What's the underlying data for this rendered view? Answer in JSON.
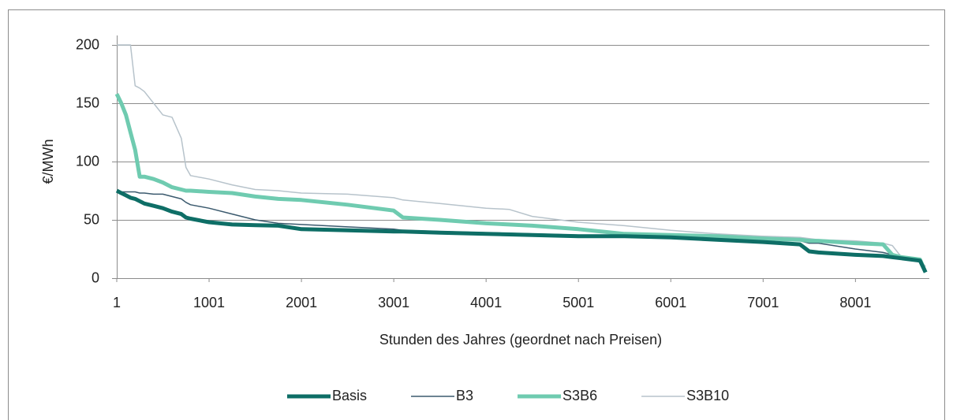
{
  "chart_data": {
    "type": "line",
    "x_label": "Stunden des Jahres (geordnet nach Preisen)",
    "y_label": "€/MWh",
    "x": [
      1,
      50,
      100,
      150,
      200,
      250,
      300,
      400,
      500,
      600,
      700,
      750,
      800,
      1000,
      1250,
      1500,
      1750,
      2000,
      2500,
      3000,
      3100,
      3500,
      4000,
      4250,
      4500,
      5000,
      5500,
      6000,
      6500,
      7000,
      7400,
      7500,
      7600,
      8000,
      8300,
      8400,
      8500,
      8700,
      8760
    ],
    "series": [
      {
        "name": "Basis",
        "color": "#0e6e66",
        "values": [
          75,
          73,
          71,
          69,
          68,
          66,
          64,
          62,
          60,
          57,
          55,
          52,
          51,
          48,
          46,
          45.5,
          45,
          42,
          41,
          40,
          40,
          39,
          38,
          37.5,
          37,
          36,
          36,
          35,
          33,
          31,
          29,
          23,
          22,
          20,
          19,
          18,
          17,
          15,
          5
        ]
      },
      {
        "name": "B3",
        "color": "#3b5a6e",
        "values": [
          75,
          74,
          74,
          74,
          74,
          73,
          73,
          72,
          72,
          70,
          68,
          65,
          63,
          60,
          55,
          50,
          47,
          46,
          44,
          42,
          41,
          40,
          39,
          38.5,
          38,
          37,
          37,
          36,
          35,
          34,
          32,
          30,
          30,
          25,
          22,
          20,
          18,
          15,
          8
        ]
      },
      {
        "name": "S3B6",
        "color": "#6fcbb0",
        "values": [
          158,
          150,
          140,
          125,
          110,
          87,
          87,
          85,
          82,
          78,
          76,
          75,
          75,
          74,
          73,
          70,
          68,
          67,
          63,
          58,
          52,
          50,
          47,
          46,
          45,
          42,
          38,
          37,
          36,
          34,
          33,
          32,
          32,
          30,
          29,
          20,
          18,
          16,
          5
        ]
      },
      {
        "name": "S3B10",
        "color": "#b7c3cb",
        "values": [
          200,
          200,
          200,
          200,
          165,
          163,
          160,
          150,
          140,
          138,
          120,
          95,
          88,
          85,
          80,
          76,
          75,
          73,
          72,
          69,
          67,
          64,
          60,
          59,
          53,
          48,
          45,
          41,
          38,
          36,
          35,
          34,
          33,
          32,
          30,
          28,
          18,
          15,
          10
        ]
      }
    ],
    "xlim": [
      1,
      8801
    ],
    "xticks": [
      1,
      1001,
      2001,
      3001,
      4001,
      5001,
      6001,
      7001,
      8001
    ],
    "ylim": [
      0,
      200
    ],
    "yticks": [
      0,
      50,
      100,
      150,
      200
    ],
    "grid": true,
    "legend": "bottom"
  }
}
